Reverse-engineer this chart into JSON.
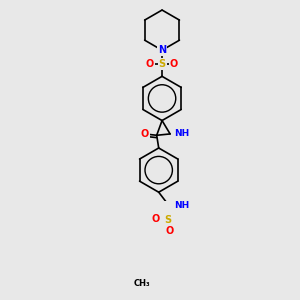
{
  "bg_color": "#e8e8e8",
  "bond_color": "#000000",
  "bond_width": 1.2,
  "colors": {
    "N": "#0000ff",
    "O": "#ff0000",
    "S": "#ccaa00",
    "C": "#000000",
    "NH_teal": "#008080"
  },
  "figsize": [
    3.0,
    3.0
  ],
  "dpi": 100
}
